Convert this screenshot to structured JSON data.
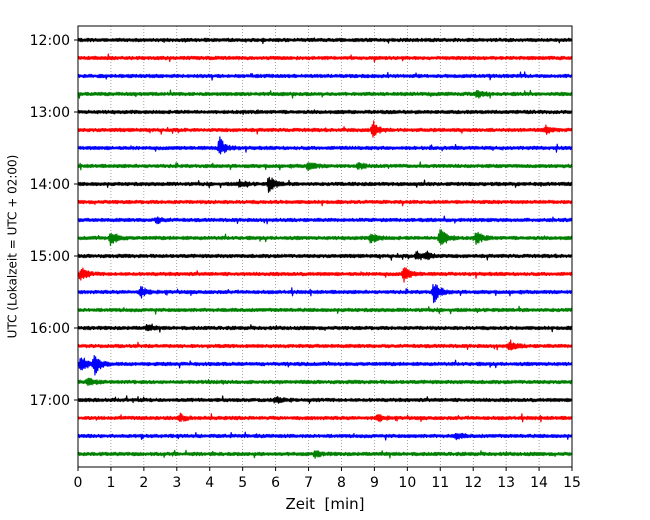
{
  "chart_data": {
    "type": "line",
    "title": "",
    "xlabel": "Zeit  [min]",
    "ylabel": "UTC (Lokalzeit = UTC + 02:00)",
    "xlim": [
      0,
      15
    ],
    "x_ticks": [
      0,
      1,
      2,
      3,
      4,
      5,
      6,
      7,
      8,
      9,
      10,
      11,
      12,
      13,
      14,
      15
    ],
    "x_tick_labels": [
      "0",
      "1",
      "2",
      "3",
      "4",
      "5",
      "6",
      "7",
      "8",
      "9",
      "10",
      "11",
      "12",
      "13",
      "14",
      "15"
    ],
    "y_tick_labels": [
      "12:00",
      "13:00",
      "14:00",
      "15:00",
      "16:00",
      "17:00"
    ],
    "grid": "vertical-dotted",
    "series_colors": [
      "#000000",
      "#ff0000",
      "#0000ff",
      "#008000"
    ],
    "trace_count": 24,
    "traces": [
      {
        "time": "12:00",
        "color": "#000000",
        "events": []
      },
      {
        "time": "12:15",
        "color": "#ff0000",
        "events": []
      },
      {
        "time": "12:30",
        "color": "#0000ff",
        "events": []
      },
      {
        "time": "12:45",
        "color": "#008000",
        "events": [
          {
            "min": 12.1,
            "amp": 0.5
          }
        ]
      },
      {
        "time": "13:00",
        "color": "#000000",
        "events": []
      },
      {
        "time": "13:15",
        "color": "#ff0000",
        "events": [
          {
            "min": 8.95,
            "amp": 1.0
          },
          {
            "min": 14.2,
            "amp": 0.4
          }
        ]
      },
      {
        "time": "13:30",
        "color": "#0000ff",
        "events": [
          {
            "min": 4.3,
            "amp": 1.1
          }
        ]
      },
      {
        "time": "13:45",
        "color": "#008000",
        "events": [
          {
            "min": 7.0,
            "amp": 0.5
          },
          {
            "min": 8.5,
            "amp": 0.4
          }
        ]
      },
      {
        "time": "14:00",
        "color": "#000000",
        "events": [
          {
            "min": 5.8,
            "amp": 0.9
          },
          {
            "min": 4.9,
            "amp": 0.4
          }
        ]
      },
      {
        "time": "14:15",
        "color": "#ff0000",
        "events": []
      },
      {
        "time": "14:30",
        "color": "#0000ff",
        "events": [
          {
            "min": 2.4,
            "amp": 0.3
          }
        ]
      },
      {
        "time": "14:45",
        "color": "#008000",
        "events": [
          {
            "min": 1.0,
            "amp": 0.8
          },
          {
            "min": 8.9,
            "amp": 0.6
          },
          {
            "min": 11.0,
            "amp": 1.3
          },
          {
            "min": 12.1,
            "amp": 0.7
          }
        ]
      },
      {
        "time": "15:00",
        "color": "#000000",
        "events": [
          {
            "min": 10.3,
            "amp": 0.5
          },
          {
            "min": 10.6,
            "amp": 0.4
          }
        ]
      },
      {
        "time": "15:15",
        "color": "#ff0000",
        "events": [
          {
            "min": 0.1,
            "amp": 0.7
          },
          {
            "min": 9.9,
            "amp": 0.8
          }
        ]
      },
      {
        "time": "15:30",
        "color": "#0000ff",
        "events": [
          {
            "min": 1.9,
            "amp": 0.6
          },
          {
            "min": 10.8,
            "amp": 1.2
          }
        ]
      },
      {
        "time": "15:45",
        "color": "#008000",
        "events": []
      },
      {
        "time": "16:00",
        "color": "#000000",
        "events": [
          {
            "min": 2.1,
            "amp": 0.3
          }
        ]
      },
      {
        "time": "16:15",
        "color": "#ff0000",
        "events": [
          {
            "min": 13.1,
            "amp": 0.6
          }
        ]
      },
      {
        "time": "16:30",
        "color": "#0000ff",
        "events": [
          {
            "min": 0.1,
            "amp": 1.0
          },
          {
            "min": 0.5,
            "amp": 1.1
          }
        ]
      },
      {
        "time": "16:45",
        "color": "#008000",
        "events": [
          {
            "min": 0.3,
            "amp": 0.4
          }
        ]
      },
      {
        "time": "17:00",
        "color": "#000000",
        "events": [
          {
            "min": 6.0,
            "amp": 0.3
          }
        ]
      },
      {
        "time": "17:15",
        "color": "#ff0000",
        "events": [
          {
            "min": 3.1,
            "amp": 0.4
          },
          {
            "min": 9.1,
            "amp": 0.4
          }
        ]
      },
      {
        "time": "17:30",
        "color": "#0000ff",
        "events": [
          {
            "min": 11.5,
            "amp": 0.3
          }
        ]
      },
      {
        "time": "17:45",
        "color": "#008000",
        "events": [
          {
            "min": 7.2,
            "amp": 0.3
          }
        ]
      }
    ]
  }
}
